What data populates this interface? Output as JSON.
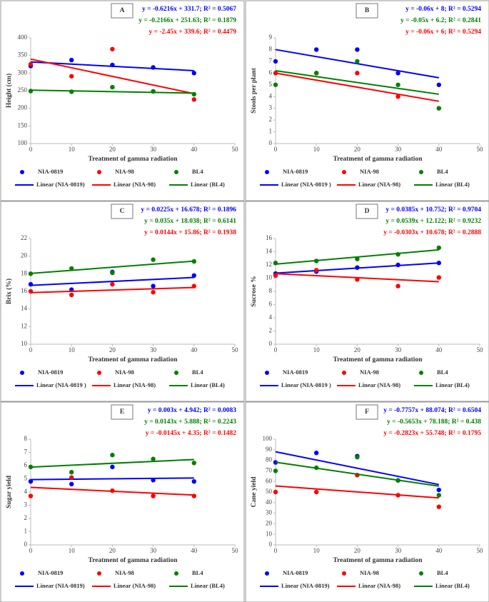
{
  "chart_data": [
    {
      "type": "scatter",
      "panel": "A",
      "ylabel": "Height (cm)",
      "xlabel": "Treatment of gamma radiation",
      "x": [
        0,
        10,
        20,
        30,
        40
      ],
      "xlim": [
        0,
        50
      ],
      "xticks": [
        0,
        10,
        20,
        30,
        40,
        50
      ],
      "ylim": [
        100,
        400
      ],
      "yticks": [
        100,
        150,
        200,
        250,
        300,
        350,
        400
      ],
      "series": [
        {
          "name": "NIA-0819",
          "color": "#0000ff",
          "values": [
            320,
            337,
            323,
            316,
            300
          ],
          "trend": {
            "name": "Linear (NIA-0819)",
            "slope": -0.6216,
            "intercept": 331.7,
            "label": "y = -0.6216x + 331.7; R² = 0.5067"
          }
        },
        {
          "name": "NIA-98",
          "color": "#ff0000",
          "values": [
            325,
            291,
            368,
            248,
            225
          ],
          "trend": {
            "name": "Linear (NIA-98)",
            "slope": -2.45,
            "intercept": 339.6,
            "label": "y = -2.45x + 339.6; R² = 0.4479"
          }
        },
        {
          "name": "BL4",
          "color": "#008000",
          "values": [
            249,
            247,
            260,
            248,
            240
          ],
          "trend": {
            "name": "Linear (BL4)",
            "slope": -0.2166,
            "intercept": 251.63,
            "label": "y = -0.2166x + 251.63; R² = 0.1879"
          }
        }
      ]
    },
    {
      "type": "scatter",
      "panel": "B",
      "ylabel": "Stools per plant",
      "xlabel": "Treatment of gamma radiation",
      "x": [
        0,
        10,
        20,
        30,
        40
      ],
      "xlim": [
        0,
        50
      ],
      "xticks": [
        0,
        10,
        20,
        30,
        40,
        50
      ],
      "ylim": [
        0,
        9
      ],
      "yticks": [
        0,
        1,
        2,
        3,
        4,
        5,
        6,
        7,
        8,
        9
      ],
      "series": [
        {
          "name": "NIA-0819",
          "color": "#0000ff",
          "values": [
            7,
            8,
            8,
            6,
            5
          ],
          "trend": {
            "name": "Linear (NIA-0819 )",
            "slope": -0.06,
            "intercept": 8,
            "label": "y = -0.06x + 8; R² = 0.5294"
          }
        },
        {
          "name": "NIA-98",
          "color": "#ff0000",
          "values": [
            6,
            6,
            6,
            4,
            3
          ],
          "trend": {
            "name": "Linear (NIA-98)",
            "slope": -0.06,
            "intercept": 6,
            "label": "y = -0.06x + 6; R² = 0.5294"
          }
        },
        {
          "name": "BL4",
          "color": "#008000",
          "values": [
            5,
            6,
            7,
            5,
            3
          ],
          "trend": {
            "name": "Linear (BL4)",
            "slope": -0.05,
            "intercept": 6.2,
            "label": "y = -0.05x + 6.2; R² = 0.2841"
          }
        }
      ]
    },
    {
      "type": "scatter",
      "panel": "C",
      "ylabel": "Brix (%)",
      "xlabel": "Treatment of gamma radiation",
      "x": [
        0,
        10,
        20,
        30,
        40
      ],
      "xlim": [
        0,
        50
      ],
      "xticks": [
        0,
        10,
        20,
        30,
        40,
        50
      ],
      "ylim": [
        10,
        22
      ],
      "yticks": [
        10,
        12,
        14,
        16,
        18,
        20,
        22
      ],
      "series": [
        {
          "name": "NIA-0819",
          "color": "#0000ff",
          "values": [
            16.8,
            16.2,
            18.2,
            16.6,
            17.8
          ],
          "trend": {
            "name": "Linear (NIA-0819 )",
            "slope": 0.0225,
            "intercept": 16.678,
            "label": "y = 0.0225x + 16.678; R² = 0.1896"
          }
        },
        {
          "name": "NIA-98",
          "color": "#ff0000",
          "values": [
            16,
            15.6,
            16.8,
            15.9,
            16.6
          ],
          "trend": {
            "name": "Linear (NIA-98)",
            "slope": 0.0144,
            "intercept": 15.86,
            "label": "y = 0.0144x + 15.86; R² = 0.1938"
          }
        },
        {
          "name": "BL4",
          "color": "#008000",
          "values": [
            18,
            18.6,
            18.1,
            19.6,
            19.4
          ],
          "trend": {
            "name": "Linear (BL4)",
            "slope": 0.035,
            "intercept": 18.038,
            "label": "y = 0.035x + 18.038; R² = 0.6141"
          }
        }
      ]
    },
    {
      "type": "scatter",
      "panel": "D",
      "ylabel": "Sucrose %",
      "xlabel": "Treatment of gamma radiation",
      "x": [
        0,
        10,
        20,
        30,
        40
      ],
      "xlim": [
        0,
        50
      ],
      "xticks": [
        0,
        10,
        20,
        30,
        40,
        50
      ],
      "ylim": [
        0,
        16
      ],
      "yticks": [
        0,
        2,
        4,
        6,
        8,
        10,
        12,
        14,
        16
      ],
      "series": [
        {
          "name": "NIA-0819",
          "color": "#0000ff",
          "values": [
            10.7,
            11,
            11.6,
            12,
            12.3
          ],
          "trend": {
            "name": "Linear (NIA-0819 )",
            "slope": 0.0385,
            "intercept": 10.752,
            "label": "y = 0.0385x + 10.752; R² = 0.9704"
          }
        },
        {
          "name": "NIA-98",
          "color": "#ff0000",
          "values": [
            10.4,
            11.2,
            9.8,
            8.8,
            10.1
          ],
          "trend": {
            "name": "Linear (NIA-98)",
            "slope": -0.0303,
            "intercept": 10.678,
            "label": "y = -0.0303x + 10.678; R² = 0.2888"
          }
        },
        {
          "name": "BL4",
          "color": "#008000",
          "values": [
            12.3,
            12.6,
            12.9,
            13.6,
            14.6
          ],
          "trend": {
            "name": "Linear (BL4)",
            "slope": 0.0539,
            "intercept": 12.122,
            "label": "y = 0.0539x + 12.122; R² = 0.9232"
          }
        }
      ]
    },
    {
      "type": "scatter",
      "panel": "E",
      "ylabel": "Sugar yield",
      "xlabel": "Treatment of gamma radiation",
      "x": [
        0,
        10,
        20,
        30,
        40
      ],
      "xlim": [
        0,
        50
      ],
      "xticks": [
        0,
        10,
        20,
        30,
        40,
        50
      ],
      "ylim": [
        0,
        8
      ],
      "yticks": [
        0,
        1,
        2,
        3,
        4,
        5,
        6,
        7,
        8
      ],
      "series": [
        {
          "name": "NIA-0819",
          "color": "#0000ff",
          "values": [
            4.8,
            4.6,
            5.9,
            4.9,
            4.8
          ],
          "trend": {
            "name": "Linear (NIA-0819)",
            "slope": 0.003,
            "intercept": 4.942,
            "label": "y = 0.003x + 4.942; R² = 0.0083"
          }
        },
        {
          "name": "NIA-98",
          "color": "#ff0000",
          "values": [
            3.7,
            5.1,
            4.1,
            3.7,
            3.7
          ],
          "trend": {
            "name": "Linear (NIA-98)",
            "slope": -0.0145,
            "intercept": 4.35,
            "label": "y = -0.0145x + 4.35; R² = 0.1482"
          }
        },
        {
          "name": "BL4",
          "color": "#008000",
          "values": [
            5.9,
            5.5,
            6.8,
            6.5,
            6.2
          ],
          "trend": {
            "name": "Linear (BL4)",
            "slope": 0.0143,
            "intercept": 5.888,
            "label": "y = 0.0143x + 5.888; R² = 0.2243"
          }
        }
      ]
    },
    {
      "type": "scatter",
      "panel": "F",
      "ylabel": "Cane yield",
      "xlabel": "Treatment of gamma radiation",
      "x": [
        0,
        10,
        20,
        30,
        40
      ],
      "xlim": [
        0,
        50
      ],
      "xticks": [
        0,
        10,
        20,
        30,
        40,
        50
      ],
      "ylim": [
        0,
        100
      ],
      "yticks": [
        0,
        10,
        20,
        30,
        40,
        50,
        60,
        70,
        80,
        90,
        100
      ],
      "series": [
        {
          "name": "NIA-0819",
          "color": "#0000ff",
          "values": [
            78,
            87,
            84,
            61,
            52
          ],
          "trend": {
            "name": "Linear (NIA-0819)",
            "slope": -0.7757,
            "intercept": 88.074,
            "label": "y = -0.7757x + 88.074; R² = 0.6504"
          }
        },
        {
          "name": "NIA-98",
          "color": "#ff0000",
          "values": [
            50,
            50,
            66,
            47,
            36
          ],
          "trend": {
            "name": "Linear (NIA-98)",
            "slope": -0.2823,
            "intercept": 55.748,
            "label": "y = -0.2823x + 55.748; R² = 0.1795"
          }
        },
        {
          "name": "BL4",
          "color": "#008000",
          "values": [
            70,
            73,
            83,
            61,
            47
          ],
          "trend": {
            "name": "Linear (BL4)",
            "slope": -0.5653,
            "intercept": 78.188,
            "label": "y = -0.5653x + 78.188; R² = 0.438"
          }
        }
      ]
    }
  ]
}
